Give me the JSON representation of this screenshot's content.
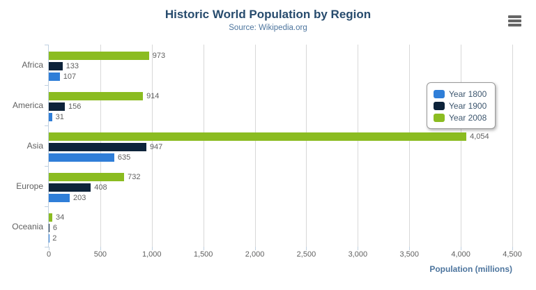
{
  "chart": {
    "title": "Historic World Population by Region",
    "subtitle": "Source: Wikipedia.org",
    "xaxis_title": "Population (millions)"
  },
  "menu": {
    "icon": "hamburger-menu-icon"
  },
  "chart_data": {
    "type": "bar",
    "orientation": "horizontal",
    "title": "Historic World Population by Region",
    "subtitle": "Source: Wikipedia.org",
    "xlabel": "Population (millions)",
    "categories": [
      "Africa",
      "America",
      "Asia",
      "Europe",
      "Oceania"
    ],
    "series": [
      {
        "name": "Year 1800",
        "color": "#2f7ed8",
        "values": [
          107,
          31,
          635,
          203,
          2
        ]
      },
      {
        "name": "Year 1900",
        "color": "#0d233a",
        "values": [
          133,
          156,
          947,
          408,
          6
        ]
      },
      {
        "name": "Year 2008",
        "color": "#8bbc21",
        "values": [
          973,
          914,
          4054,
          732,
          34
        ]
      }
    ],
    "bar_order_top_to_bottom": [
      "Year 2008",
      "Year 1900",
      "Year 1800"
    ],
    "data_labels": true,
    "xlim": [
      0,
      4500
    ],
    "xticks": [
      0,
      500,
      1000,
      1500,
      2000,
      2500,
      3000,
      3500,
      4000,
      4500
    ],
    "grid": true,
    "legend_position": "right-inside"
  },
  "ui_colors": {
    "title": "#274b6d",
    "subtitle": "#4d759e",
    "axis_labels": "#606060",
    "gridline": "#d8d8d8",
    "axis_line": "#c0d0e0",
    "legend_text": "#3e576f",
    "menu_icon": "#666666"
  }
}
